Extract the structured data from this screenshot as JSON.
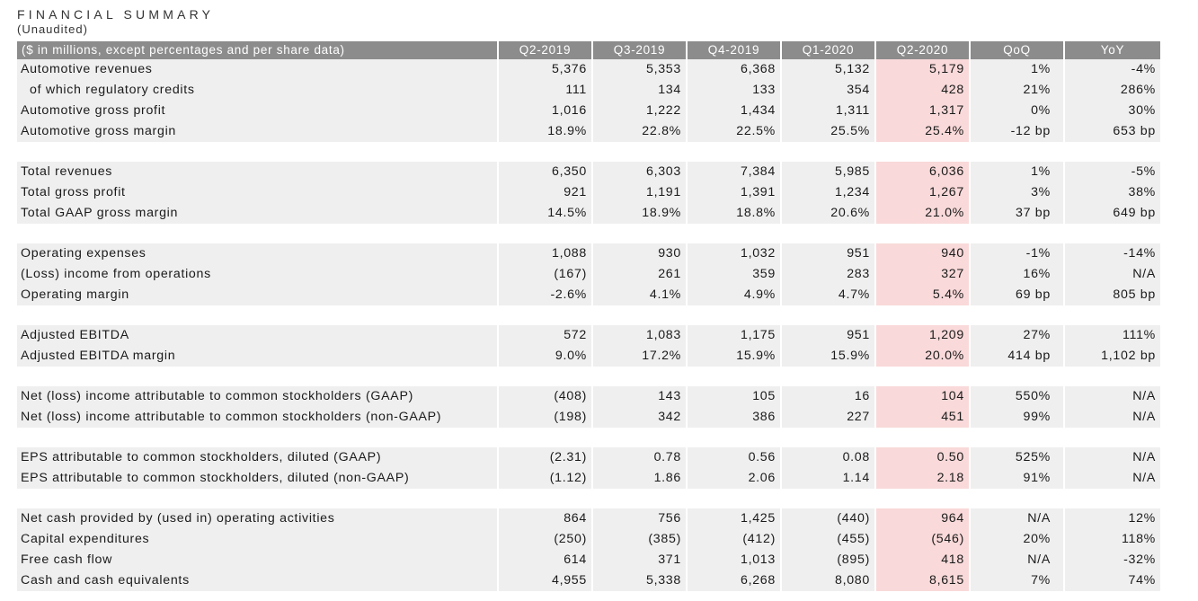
{
  "header": {
    "title": "FINANCIAL SUMMARY",
    "subtitle": "(Unaudited)"
  },
  "colors": {
    "header_bg": "#8c8c8c",
    "row_bg": "#efefef",
    "highlight": "#f9d9d9"
  },
  "table": {
    "columns": [
      "($ in millions, except percentages and per share data)",
      "Q2-2019",
      "Q3-2019",
      "Q4-2019",
      "Q1-2020",
      "Q2-2020",
      "QoQ",
      "YoY"
    ],
    "rows": [
      [
        "Automotive revenues",
        "5,376",
        "5,353",
        "6,368",
        "5,132",
        "5,179",
        "1%",
        "-4%"
      ],
      [
        "of which regulatory credits",
        "111",
        "134",
        "133",
        "354",
        "428",
        "21%",
        "286%"
      ],
      [
        "Automotive gross profit",
        "1,016",
        "1,222",
        "1,434",
        "1,311",
        "1,317",
        "0%",
        "30%"
      ],
      [
        "Automotive gross margin",
        "18.9%",
        "22.8%",
        "22.5%",
        "25.5%",
        "25.4%",
        "-12 bp",
        "653 bp"
      ],
      [
        "Total revenues",
        "6,350",
        "6,303",
        "7,384",
        "5,985",
        "6,036",
        "1%",
        "-5%"
      ],
      [
        "Total gross profit",
        "921",
        "1,191",
        "1,391",
        "1,234",
        "1,267",
        "3%",
        "38%"
      ],
      [
        "Total GAAP gross margin",
        "14.5%",
        "18.9%",
        "18.8%",
        "20.6%",
        "21.0%",
        "37 bp",
        "649 bp"
      ],
      [
        "Operating expenses",
        "1,088",
        "930",
        "1,032",
        "951",
        "940",
        "-1%",
        "-14%"
      ],
      [
        "(Loss) income from operations",
        "(167)",
        "261",
        "359",
        "283",
        "327",
        "16%",
        "N/A"
      ],
      [
        "Operating margin",
        "-2.6%",
        "4.1%",
        "4.9%",
        "4.7%",
        "5.4%",
        "69 bp",
        "805 bp"
      ],
      [
        "Adjusted EBITDA",
        "572",
        "1,083",
        "1,175",
        "951",
        "1,209",
        "27%",
        "111%"
      ],
      [
        "Adjusted EBITDA margin",
        "9.0%",
        "17.2%",
        "15.9%",
        "15.9%",
        "20.0%",
        "414 bp",
        "1,102 bp"
      ],
      [
        "Net (loss) income attributable to common stockholders (GAAP)",
        "(408)",
        "143",
        "105",
        "16",
        "104",
        "550%",
        "N/A"
      ],
      [
        "Net (loss) income attributable to common stockholders (non-GAAP)",
        "(198)",
        "342",
        "386",
        "227",
        "451",
        "99%",
        "N/A"
      ],
      [
        "EPS attributable to common stockholders, diluted (GAAP)",
        "(2.31)",
        "0.78",
        "0.56",
        "0.08",
        "0.50",
        "525%",
        "N/A"
      ],
      [
        "EPS attributable to common stockholders, diluted (non-GAAP)",
        "(1.12)",
        "1.86",
        "2.06",
        "1.14",
        "2.18",
        "91%",
        "N/A"
      ],
      [
        "Net cash provided by (used in) operating activities",
        "864",
        "756",
        "1,425",
        "(440)",
        "964",
        "N/A",
        "12%"
      ],
      [
        "Capital expenditures",
        "(250)",
        "(385)",
        "(412)",
        "(455)",
        "(546)",
        "20%",
        "118%"
      ],
      [
        "Free cash flow",
        "614",
        "371",
        "1,013",
        "(895)",
        "418",
        "N/A",
        "-32%"
      ],
      [
        "Cash and cash equivalents",
        "4,955",
        "5,338",
        "6,268",
        "8,080",
        "8,615",
        "7%",
        "74%"
      ]
    ]
  }
}
